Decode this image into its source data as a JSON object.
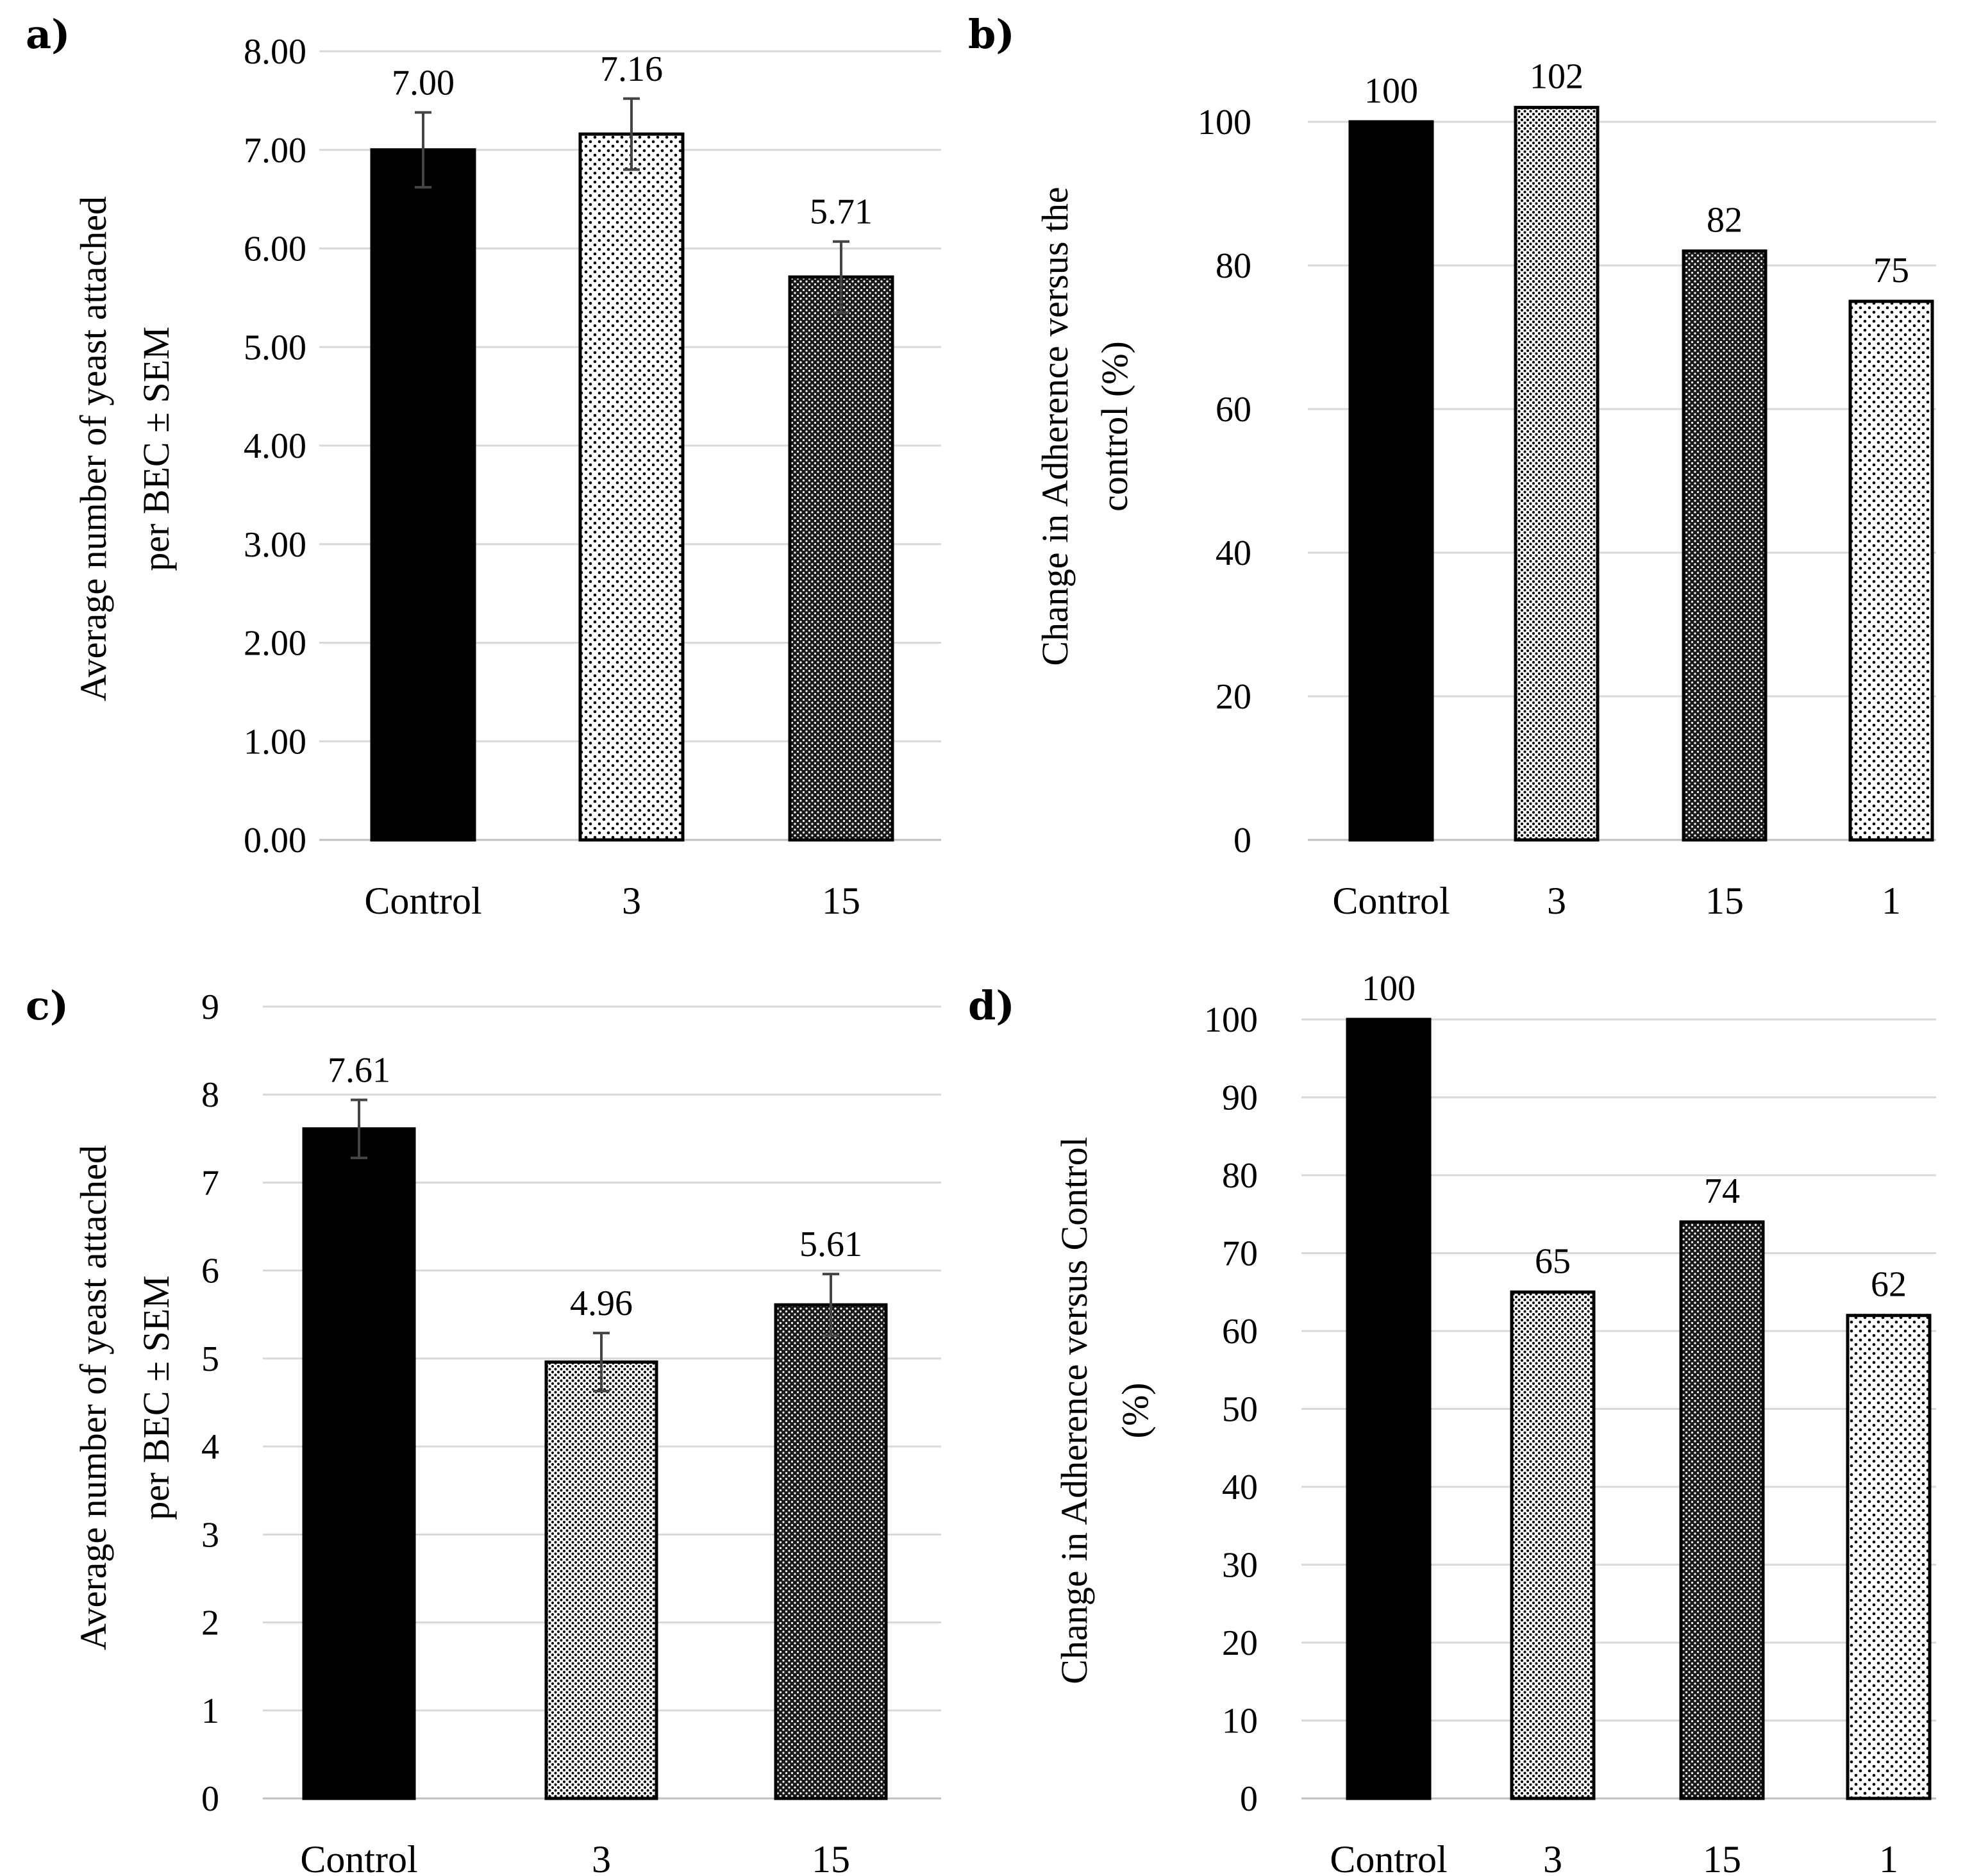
{
  "figure": {
    "colors": {
      "bar_dark": "#000000",
      "grid": "#d9d9d9",
      "text": "#000000"
    }
  },
  "chart_data": [
    {
      "panel": "a)",
      "type": "bar",
      "categories": [
        "Control",
        "3",
        "15"
      ],
      "values": [
        7.0,
        7.16,
        5.71
      ],
      "data_labels": [
        "7.00",
        "7.16",
        "5.71"
      ],
      "error": [
        0.38,
        0.36,
        0.36
      ],
      "patterns": [
        "solid",
        "sparse-dots",
        "dense-dots"
      ],
      "ylabel": [
        "Average number of yeast attached",
        "per BEC ± SEM"
      ],
      "ylim": [
        0,
        8
      ],
      "yticks": [
        "0.00",
        "1.00",
        "2.00",
        "3.00",
        "4.00",
        "5.00",
        "6.00",
        "7.00",
        "8.00"
      ],
      "grid": true
    },
    {
      "panel": "b)",
      "type": "bar",
      "categories": [
        "Control",
        "3",
        "15",
        "1"
      ],
      "values": [
        100,
        102,
        82,
        75
      ],
      "data_labels": [
        "100",
        "102",
        "82",
        "75"
      ],
      "patterns": [
        "solid",
        "fine-dots",
        "dense-dots",
        "sparse-dots"
      ],
      "ylabel": [
        "Change in Adherence versus the",
        "control (%)"
      ],
      "ylim": [
        0,
        100
      ],
      "yticks": [
        "0",
        "20",
        "40",
        "60",
        "80",
        "100"
      ],
      "grid": true
    },
    {
      "panel": "c)",
      "type": "bar",
      "categories": [
        "Control",
        "3",
        "15"
      ],
      "values": [
        7.61,
        4.96,
        5.61
      ],
      "data_labels": [
        "7.61",
        "4.96",
        "5.61"
      ],
      "error": [
        0.33,
        0.33,
        0.35
      ],
      "patterns": [
        "solid",
        "fine-dots",
        "dense-dots"
      ],
      "ylabel": [
        "Average number of yeast attached",
        "per BEC ± SEM"
      ],
      "ylim": [
        0,
        9
      ],
      "yticks": [
        "0",
        "1",
        "2",
        "3",
        "4",
        "5",
        "6",
        "7",
        "8",
        "9"
      ],
      "grid": true
    },
    {
      "panel": "d)",
      "type": "bar",
      "categories": [
        "Control",
        "3",
        "15",
        "1"
      ],
      "values": [
        100,
        65,
        74,
        62
      ],
      "data_labels": [
        "100",
        "65",
        "74",
        "62"
      ],
      "patterns": [
        "solid",
        "fine-dots",
        "dense-dots",
        "sparse-dots"
      ],
      "ylabel": [
        "Change in Adherence versus Control",
        "(%)"
      ],
      "ylim": [
        0,
        100
      ],
      "yticks": [
        "0",
        "10",
        "20",
        "30",
        "40",
        "50",
        "60",
        "70",
        "80",
        "90",
        "100"
      ],
      "grid": true
    }
  ]
}
